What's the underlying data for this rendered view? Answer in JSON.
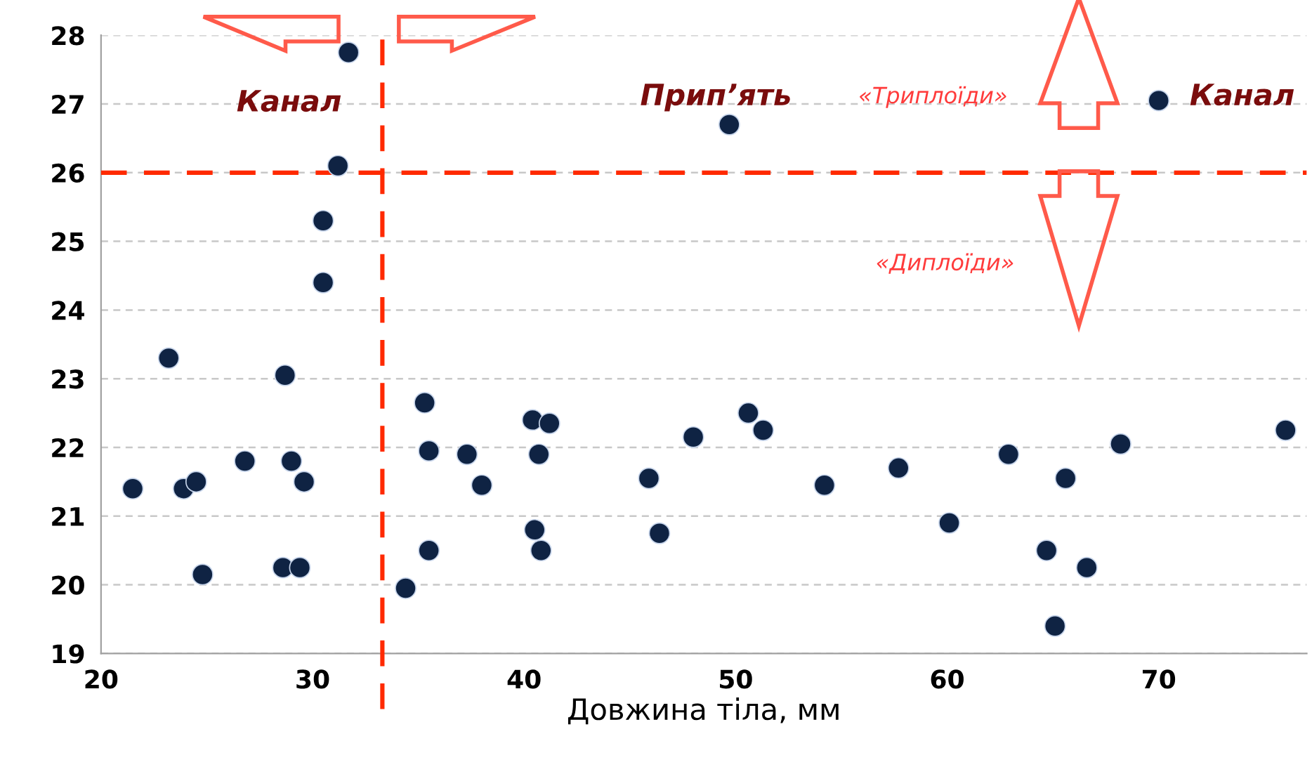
{
  "chart_data": {
    "type": "scatter",
    "xlabel": "Довжина тіла, мм",
    "x": [
      21.5,
      23.2,
      23.9,
      24.5,
      24.8,
      26.8,
      28.6,
      28.7,
      29.0,
      29.4,
      29.6,
      30.5,
      30.5,
      31.2,
      31.7,
      34.4,
      35.3,
      35.5,
      35.5,
      37.3,
      38.0,
      40.4,
      40.5,
      40.7,
      40.8,
      41.2,
      45.9,
      46.4,
      48.0,
      49.7,
      50.6,
      51.3,
      54.2,
      57.7,
      60.1,
      62.9,
      64.7,
      65.1,
      65.6,
      66.6,
      68.2,
      70.0,
      76.0
    ],
    "values": [
      21.4,
      23.3,
      21.4,
      21.5,
      20.15,
      21.8,
      20.25,
      23.05,
      21.8,
      20.25,
      21.5,
      24.4,
      25.3,
      26.1,
      27.75,
      19.95,
      22.65,
      21.95,
      20.5,
      21.9,
      21.45,
      22.4,
      20.8,
      21.9,
      20.5,
      22.35,
      21.55,
      20.75,
      22.15,
      26.7,
      22.5,
      22.25,
      21.45,
      21.7,
      20.9,
      21.9,
      20.5,
      19.4,
      21.55,
      20.25,
      22.05,
      27.05,
      22.25
    ],
    "color": "#0f2343",
    "marker": "circle",
    "xlim": [
      20,
      77
    ],
    "xticks": [
      20,
      30,
      40,
      50,
      60,
      70
    ],
    "ylim": [
      19,
      28
    ],
    "yticks": [
      19,
      20,
      21,
      22,
      23,
      24,
      25,
      26,
      27,
      28
    ],
    "grid": "y",
    "ref_lines": [
      {
        "axis": "x",
        "value": 33.3,
        "color": "#ff2a00",
        "line_style": "dashed"
      },
      {
        "axis": "y",
        "value": 26,
        "color": "#ff2a00",
        "line_style": "dashed"
      }
    ],
    "annotations": [
      "Канал",
      "Прип’ять",
      "Канал",
      "«Триплоїди»",
      "«Диплоїди»"
    ]
  }
}
